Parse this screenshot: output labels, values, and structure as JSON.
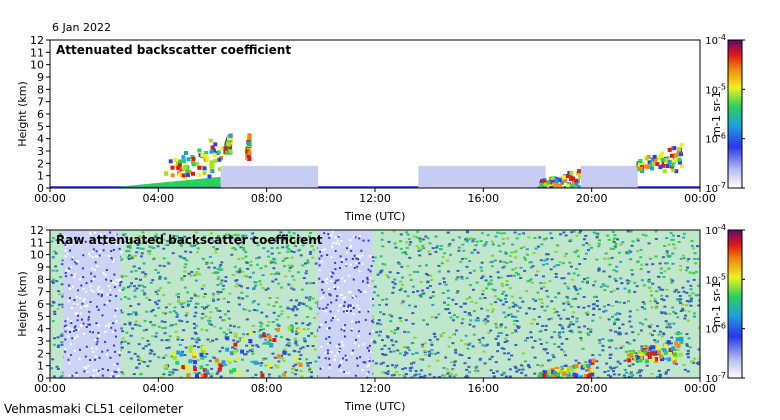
{
  "date": "6 Jan 2022",
  "footer": "Vehmasmaki CL51 ceilometer",
  "colorbar": {
    "unit_label": "m-1 sr-1",
    "tick_labels": [
      "10-7",
      "10-6",
      "10-5",
      "10-4"
    ],
    "scale": "log",
    "range": [
      1e-07,
      0.0001
    ]
  },
  "chart_data": [
    {
      "type": "heatmap",
      "title": "Attenuated backscatter coefficient",
      "xlabel": "Time (UTC)",
      "ylabel": "Height (km)",
      "xticks": [
        "00:00",
        "04:00",
        "08:00",
        "12:00",
        "16:00",
        "20:00",
        "00:00"
      ],
      "xlim": [
        0,
        24
      ],
      "ylim": [
        0,
        12
      ],
      "yticks": [
        0,
        1,
        2,
        3,
        4,
        5,
        6,
        7,
        8,
        9,
        10,
        11,
        12
      ],
      "grid": false,
      "features": [
        {
          "kind": "surface_layer",
          "t_start": 0,
          "t_end": 24,
          "h_top": 0.15,
          "level": "1e-6"
        },
        {
          "kind": "boundary_layer",
          "t_start": 2.5,
          "t_end": 6.3,
          "h_base": 0.1,
          "h_top": 0.9,
          "level": "5e-6"
        },
        {
          "kind": "cloud",
          "t_start": 4.2,
          "t_end": 6.3,
          "h_base": 1.0,
          "h_top": 4.5,
          "level": "1e-5"
        },
        {
          "kind": "cloud",
          "t_start": 6.4,
          "t_end": 6.6,
          "h_base": 3.0,
          "h_top": 4.8,
          "level": "3e-6"
        },
        {
          "kind": "cloud",
          "t_start": 7.2,
          "t_end": 7.3,
          "h_base": 2.5,
          "h_top": 4.6,
          "level": "5e-6"
        },
        {
          "kind": "haze",
          "t_start": 6.3,
          "t_end": 9.9,
          "h_base": 0,
          "h_top": 1.8,
          "level": "2e-7"
        },
        {
          "kind": "haze",
          "t_start": 13.6,
          "t_end": 18.3,
          "h_base": 0,
          "h_top": 1.8,
          "level": "2e-7"
        },
        {
          "kind": "cloud",
          "t_start": 18.0,
          "t_end": 19.6,
          "h_base": 0.1,
          "h_top": 1.9,
          "level": "1e-5"
        },
        {
          "kind": "haze",
          "t_start": 19.6,
          "t_end": 21.7,
          "h_base": 0,
          "h_top": 1.8,
          "level": "2e-7"
        },
        {
          "kind": "cloud",
          "t_start": 21.6,
          "t_end": 23.3,
          "h_base": 1.5,
          "h_top": 3.8,
          "level": "5e-5"
        }
      ]
    },
    {
      "type": "heatmap",
      "title": "Raw attenuated backscatter coefficient",
      "xlabel": "Time (UTC)",
      "ylabel": "Height (km)",
      "xticks": [
        "00:00",
        "04:00",
        "08:00",
        "12:00",
        "16:00",
        "20:00",
        "00:00"
      ],
      "xlim": [
        0,
        24
      ],
      "ylim": [
        0,
        12
      ],
      "yticks": [
        0,
        1,
        2,
        3,
        4,
        5,
        6,
        7,
        8,
        9,
        10,
        11,
        12
      ],
      "grid": false,
      "features": [
        {
          "kind": "noise",
          "t_start": 0,
          "t_end": 24,
          "h_base": 0,
          "h_top": 12
        },
        {
          "kind": "low_noise",
          "t_start": 0.5,
          "t_end": 2.6,
          "h_base": 0,
          "h_top": 12
        },
        {
          "kind": "low_noise",
          "t_start": 9.9,
          "t_end": 11.9,
          "h_base": 0,
          "h_top": 12
        },
        {
          "kind": "cloud",
          "t_start": 4.0,
          "t_end": 9.3,
          "h_base": 0.3,
          "h_top": 5.2,
          "level": "1e-5"
        },
        {
          "kind": "cloud",
          "t_start": 18.0,
          "t_end": 20.0,
          "h_base": 0.1,
          "h_top": 1.6,
          "level": "1e-5"
        },
        {
          "kind": "cloud",
          "t_start": 21.3,
          "t_end": 23.3,
          "h_base": 1.5,
          "h_top": 3.5,
          "level": "5e-5"
        }
      ]
    }
  ]
}
